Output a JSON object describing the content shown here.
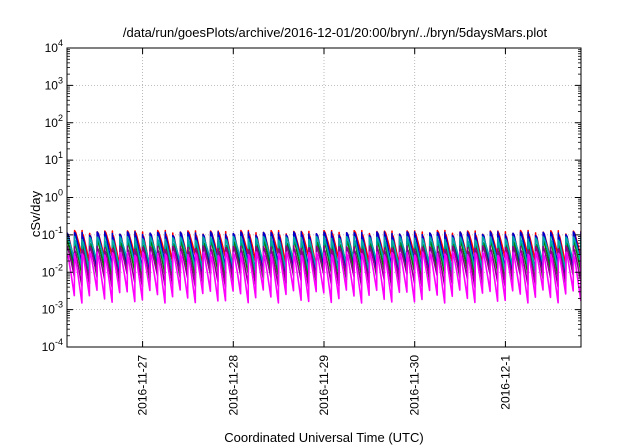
{
  "chart_data": {
    "type": "line",
    "title": "/data/run/goesPlots/archive/2016-12-01/20:00/bryn/../bryn/5daysMars.plot",
    "xlabel": "Coordinated Universal Time (UTC)",
    "ylabel": "cSv/day",
    "y_scale": "log",
    "ylim": [
      0.0001,
      10000
    ],
    "xlim": [
      "2016-11-26T04:00",
      "2016-12-01T20:00"
    ],
    "y_ticks": [
      {
        "mantissa": "10",
        "exponent": "-4"
      },
      {
        "mantissa": "10",
        "exponent": "-3"
      },
      {
        "mantissa": "10",
        "exponent": "-2"
      },
      {
        "mantissa": "10",
        "exponent": "-1"
      },
      {
        "mantissa": "10",
        "exponent": "0"
      },
      {
        "mantissa": "10",
        "exponent": "1"
      },
      {
        "mantissa": "10",
        "exponent": "2"
      },
      {
        "mantissa": "10",
        "exponent": "3"
      },
      {
        "mantissa": "10",
        "exponent": "4"
      }
    ],
    "x_ticks": [
      {
        "label": "2016-11-27",
        "date": "2016-11-27T00:00"
      },
      {
        "label": "2016-11-28",
        "date": "2016-11-28T00:00"
      },
      {
        "label": "2016-11-29",
        "date": "2016-11-29T00:00"
      },
      {
        "label": "2016-11-30",
        "date": "2016-11-30T00:00"
      },
      {
        "label": "2016-12-1",
        "date": "2016-12-01T00:00"
      }
    ],
    "grid": true,
    "pattern": {
      "period_hours": 2,
      "description": "sawtooth dose-rate cycles"
    },
    "series": [
      {
        "color": "#ff0000",
        "peak": 0.13,
        "trough": 0.013
      },
      {
        "color": "#0000cc",
        "peak": 0.12,
        "trough": 0.008
      },
      {
        "color": "#008000",
        "peak": 0.07,
        "trough": 0.005
      },
      {
        "color": "#00aaaa",
        "peak": 0.09,
        "trough": 0.01
      },
      {
        "color": "#8b008b",
        "peak": 0.05,
        "trough": 0.004
      },
      {
        "color": "#ff00ff",
        "peak": 0.035,
        "trough": 0.0015
      }
    ]
  }
}
